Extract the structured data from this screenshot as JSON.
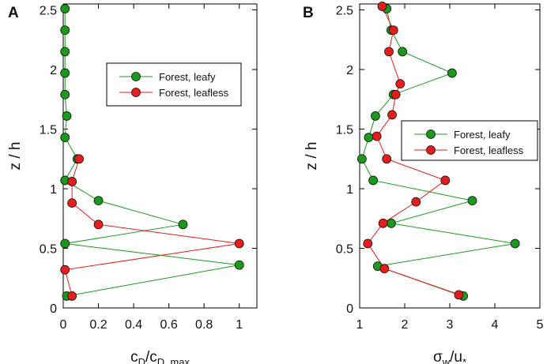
{
  "chart_data": [
    {
      "type": "line",
      "panel_label": "A",
      "xlabel": "c",
      "xlabel_sub1": "D",
      "xlabel_slash": "/c",
      "xlabel_sub2": "D, max",
      "ylabel": "z / h",
      "xlim": [
        0,
        1.1
      ],
      "ylim": [
        0,
        2.55
      ],
      "xticks": [
        "0",
        "0.2",
        "0.4",
        "0.6",
        "0.8",
        "1"
      ],
      "yticks": [
        "0",
        "0.5",
        "1",
        "1.5",
        "2",
        "2.5"
      ],
      "legend_position": "right-middle",
      "series": [
        {
          "name": "Forest, leafy",
          "color": "#1a9a1a",
          "x": [
            0.02,
            1.0,
            0.01,
            0.68,
            0.2,
            0.01,
            0.08,
            0.01,
            0.02,
            0.01,
            0.01,
            0.01,
            0.01,
            0.01
          ],
          "y": [
            0.1,
            0.36,
            0.54,
            0.7,
            0.9,
            1.07,
            1.25,
            1.43,
            1.61,
            1.79,
            1.97,
            2.15,
            2.33,
            2.51
          ]
        },
        {
          "name": "Forest, leafless",
          "color": "#e81c1c",
          "x": [
            0.05,
            0.01,
            1.0,
            0.2,
            0.05,
            0.05,
            0.09
          ],
          "y": [
            0.1,
            0.32,
            0.54,
            0.7,
            0.88,
            1.06,
            1.25
          ]
        }
      ]
    },
    {
      "type": "line",
      "panel_label": "B",
      "xlabel": "σ",
      "xlabel_sub1": "w",
      "xlabel_slash": "/u",
      "xlabel_sub2": "*",
      "ylabel": "z / h",
      "xlim": [
        1,
        5
      ],
      "ylim": [
        0,
        2.55
      ],
      "xticks": [
        "1",
        "2",
        "3",
        "4",
        "5"
      ],
      "yticks": [
        "0",
        "0.5",
        "1",
        "1.5",
        "2",
        "2.5"
      ],
      "legend_position": "right-middle",
      "series": [
        {
          "name": "Forest,  leafy",
          "color": "#1a9a1a",
          "x": [
            3.3,
            1.4,
            4.45,
            1.7,
            3.5,
            1.3,
            1.05,
            1.2,
            1.35,
            1.75,
            3.05,
            1.95,
            1.7,
            1.6
          ],
          "y": [
            0.1,
            0.35,
            0.54,
            0.71,
            0.9,
            1.07,
            1.25,
            1.43,
            1.61,
            1.79,
            1.97,
            2.15,
            2.33,
            2.51
          ]
        },
        {
          "name": "Forest,  leafless",
          "color": "#e81c1c",
          "x": [
            3.2,
            1.55,
            1.18,
            1.52,
            2.25,
            2.9,
            1.6,
            1.38,
            1.72,
            1.8,
            1.9,
            1.65,
            1.75,
            1.5
          ],
          "y": [
            0.11,
            0.33,
            0.54,
            0.71,
            0.89,
            1.07,
            1.25,
            1.44,
            1.62,
            1.79,
            1.88,
            2.15,
            2.33,
            2.53
          ]
        }
      ]
    }
  ]
}
